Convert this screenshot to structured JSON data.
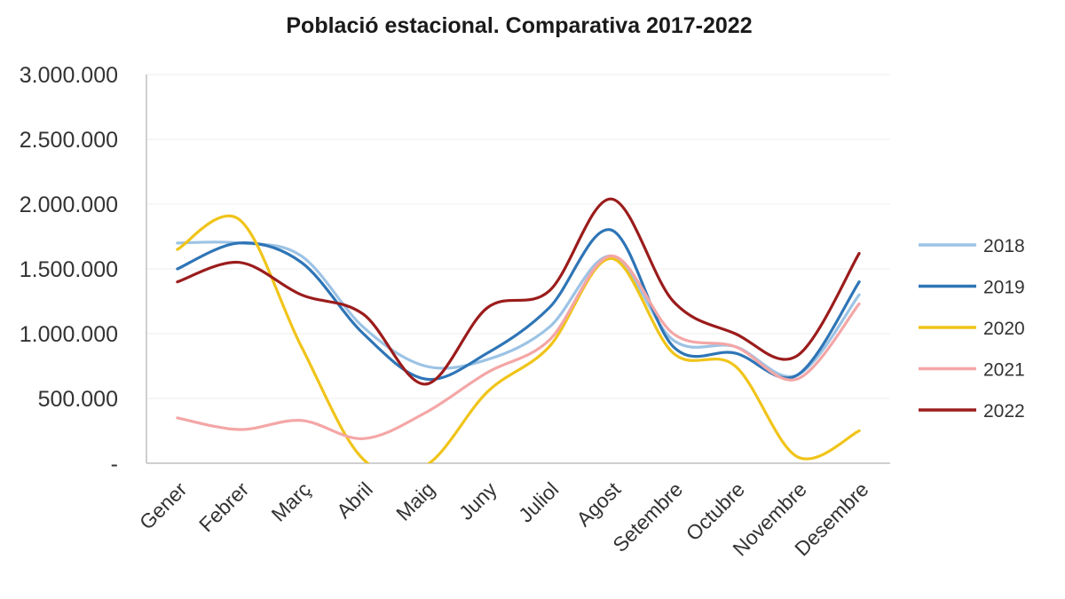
{
  "chart_data": {
    "type": "line",
    "title": "Població estacional. Comparativa 2017-2022",
    "xlabel": "",
    "ylabel": "",
    "ylim": [
      0,
      3000000
    ],
    "grid": true,
    "legend_position": "right",
    "y_ticks": [
      {
        "value": 0,
        "label": "-"
      },
      {
        "value": 500000,
        "label": "500.000"
      },
      {
        "value": 1000000,
        "label": "1.000.000"
      },
      {
        "value": 1500000,
        "label": "1.500.000"
      },
      {
        "value": 2000000,
        "label": "2.000.000"
      },
      {
        "value": 2500000,
        "label": "2.500.000"
      },
      {
        "value": 3000000,
        "label": "3.000.000"
      }
    ],
    "categories": [
      "Gener",
      "Febrer",
      "Març",
      "Abril",
      "Maig",
      "Juny",
      "Juliol",
      "Agost",
      "Setembre",
      "Octubre",
      "Novembre",
      "Desembre"
    ],
    "series": [
      {
        "name": "2018",
        "color": "#9cc3e5",
        "values": [
          1700000,
          1700000,
          1600000,
          1050000,
          750000,
          800000,
          1050000,
          1600000,
          950000,
          900000,
          680000,
          1300000
        ]
      },
      {
        "name": "2019",
        "color": "#2e75b6",
        "values": [
          1500000,
          1700000,
          1550000,
          1000000,
          650000,
          850000,
          1200000,
          1800000,
          900000,
          850000,
          680000,
          1400000
        ]
      },
      {
        "name": "2020",
        "color": "#f0c419",
        "values": [
          1650000,
          1880000,
          900000,
          30000,
          -20000,
          550000,
          900000,
          1580000,
          850000,
          750000,
          50000,
          250000
        ]
      },
      {
        "name": "2021",
        "color": "#f4a6a6",
        "values": [
          350000,
          260000,
          330000,
          190000,
          390000,
          700000,
          950000,
          1600000,
          1000000,
          900000,
          650000,
          1230000
        ]
      },
      {
        "name": "2022",
        "color": "#9b1c1c",
        "values": [
          1400000,
          1550000,
          1300000,
          1150000,
          610000,
          1200000,
          1330000,
          2040000,
          1250000,
          1000000,
          830000,
          1620000
        ]
      }
    ]
  }
}
